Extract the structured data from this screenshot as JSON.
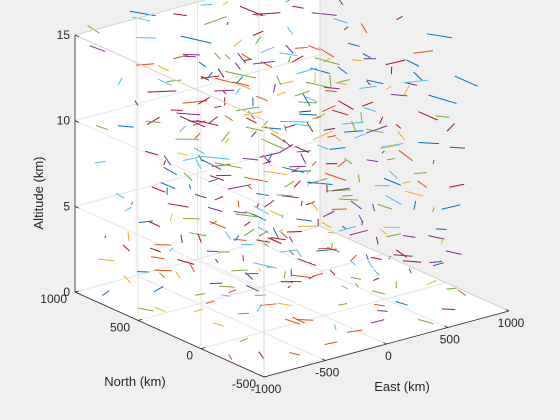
{
  "chart_data": {
    "type": "scatter3d-quiver",
    "title": "",
    "xlabel": "East (km)",
    "ylabel": "North (km)",
    "zlabel": "Altitude (km)",
    "xlim": [
      -1000,
      1000
    ],
    "ylim": [
      -500,
      1000
    ],
    "zlim": [
      0,
      15
    ],
    "xticks": [
      "-1000",
      "-500",
      "0",
      "500",
      "1000"
    ],
    "yticks": [
      "-500",
      "0",
      "500",
      "1000"
    ],
    "zticks": [
      "0",
      "5",
      "10",
      "15"
    ],
    "grid": true,
    "segment_colors": [
      "#0072bd",
      "#d95319",
      "#edb120",
      "#7e2f8e",
      "#77ac30",
      "#4dbeee",
      "#a2142f"
    ],
    "grid_points": {
      "east": [
        -900,
        -700,
        -500,
        -300,
        -100,
        100,
        300,
        500,
        700
      ],
      "north": [
        -400,
        -150,
        100,
        350,
        600,
        850
      ],
      "altitude": [
        0.5,
        2,
        3.5,
        5,
        6.5,
        8,
        9.5,
        11,
        12.5,
        14,
        15.5
      ]
    }
  }
}
